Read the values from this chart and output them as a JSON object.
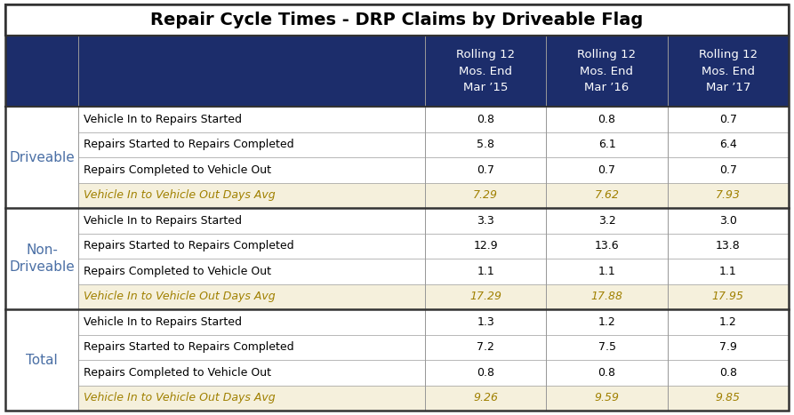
{
  "title": "Repair Cycle Times - DRP Claims by Driveable Flag",
  "header_bg": "#1c2d6b",
  "header_text_color": "#ffffff",
  "col_headers": [
    "Rolling 12\nMos. End\nMar ’15",
    "Rolling 12\nMos. End\nMar ’16",
    "Rolling 12\nMos. End\nMar ’17"
  ],
  "groups": [
    {
      "group_label": "Driveable",
      "rows": [
        {
          "label": "Vehicle In to Repairs Started",
          "values": [
            "0.8",
            "0.8",
            "0.7"
          ],
          "highlight": false
        },
        {
          "label": "Repairs Started to Repairs Completed",
          "values": [
            "5.8",
            "6.1",
            "6.4"
          ],
          "highlight": false
        },
        {
          "label": "Repairs Completed to Vehicle Out",
          "values": [
            "0.7",
            "0.7",
            "0.7"
          ],
          "highlight": false
        },
        {
          "label": "Vehicle In to Vehicle Out Days Avg",
          "values": [
            "7.29",
            "7.62",
            "7.93"
          ],
          "highlight": true
        }
      ]
    },
    {
      "group_label": "Non-\nDriveable",
      "rows": [
        {
          "label": "Vehicle In to Repairs Started",
          "values": [
            "3.3",
            "3.2",
            "3.0"
          ],
          "highlight": false
        },
        {
          "label": "Repairs Started to Repairs Completed",
          "values": [
            "12.9",
            "13.6",
            "13.8"
          ],
          "highlight": false
        },
        {
          "label": "Repairs Completed to Vehicle Out",
          "values": [
            "1.1",
            "1.1",
            "1.1"
          ],
          "highlight": false
        },
        {
          "label": "Vehicle In to Vehicle Out Days Avg",
          "values": [
            "17.29",
            "17.88",
            "17.95"
          ],
          "highlight": true
        }
      ]
    },
    {
      "group_label": "Total",
      "rows": [
        {
          "label": "Vehicle In to Repairs Started",
          "values": [
            "1.3",
            "1.2",
            "1.2"
          ],
          "highlight": false
        },
        {
          "label": "Repairs Started to Repairs Completed",
          "values": [
            "7.2",
            "7.5",
            "7.9"
          ],
          "highlight": false
        },
        {
          "label": "Repairs Completed to Vehicle Out",
          "values": [
            "0.8",
            "0.8",
            "0.8"
          ],
          "highlight": false
        },
        {
          "label": "Vehicle In to Vehicle Out Days Avg",
          "values": [
            "9.26",
            "9.59",
            "9.85"
          ],
          "highlight": true
        }
      ]
    }
  ],
  "highlight_row_color": "#f5f0dc",
  "highlight_text_color": "#a08000",
  "group_label_text_color": "#4a6fa5",
  "normal_row_bg": "#ffffff",
  "border_color": "#999999",
  "thick_border_color": "#333333",
  "title_fontsize": 14,
  "header_fontsize": 9.5,
  "cell_fontsize": 9,
  "group_label_fontsize": 11
}
